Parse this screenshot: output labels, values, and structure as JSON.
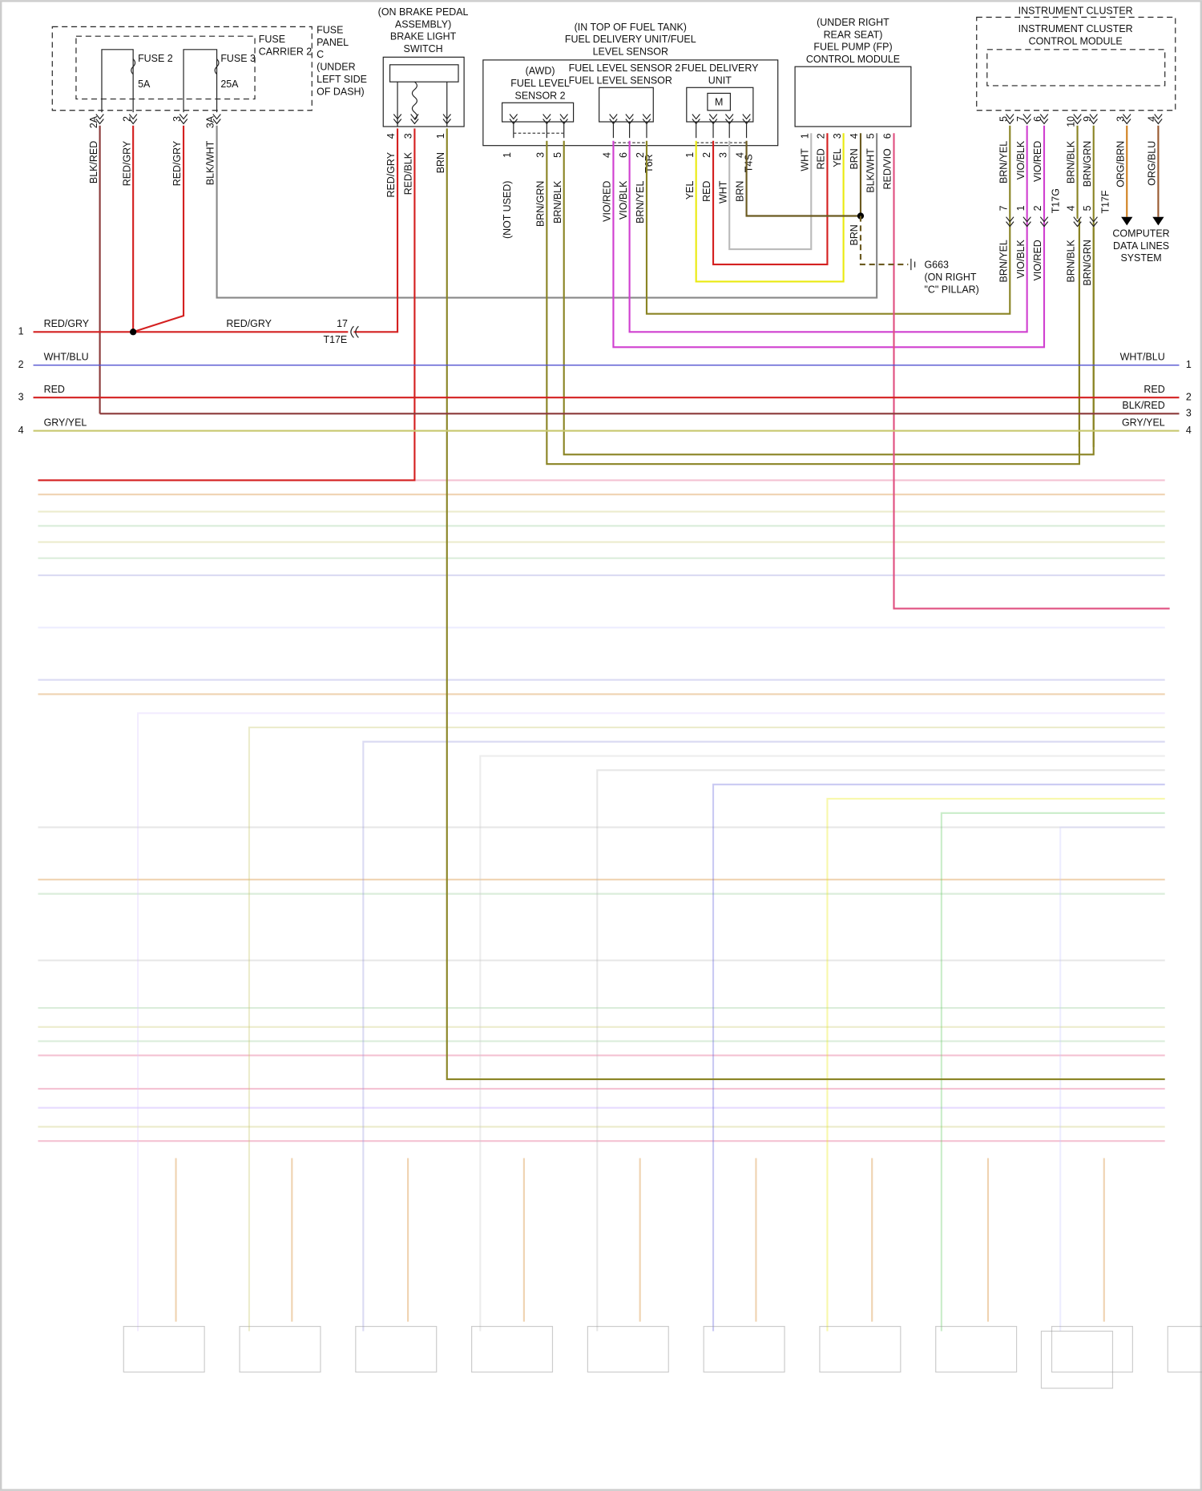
{
  "fuse_panel": {
    "label": [
      "FUSE",
      "PANEL",
      "C",
      "(UNDER",
      "LEFT SIDE",
      "OF DASH)"
    ],
    "carrier": [
      "FUSE",
      "CARRIER 2"
    ],
    "fuses": [
      {
        "name": "FUSE 2",
        "rating": "5A"
      },
      {
        "name": "FUSE 3",
        "rating": "25A"
      }
    ],
    "pins": [
      "2A",
      "2",
      "3",
      "3A"
    ],
    "wires": [
      "BLK/RED",
      "RED/GRY",
      "RED/GRY",
      "BLK/WHT"
    ]
  },
  "brake_switch": {
    "label": [
      "(ON BRAKE PEDAL",
      "ASSEMBLY)",
      "BRAKE LIGHT",
      "SWITCH"
    ],
    "pins": [
      "4",
      "3",
      "1"
    ],
    "wires": [
      "RED/GRY",
      "RED/BLK",
      "BRN"
    ]
  },
  "fuel_unit": {
    "label": [
      "(IN TOP OF FUEL TANK)",
      "FUEL DELIVERY UNIT/FUEL",
      "LEVEL SENSOR"
    ],
    "sensor2": [
      "(AWD)",
      "FUEL LEVEL",
      "SENSOR 2"
    ],
    "sensor": [
      "FUEL LEVEL SENSOR 2",
      "FUEL LEVEL SENSOR"
    ],
    "pump": [
      "FUEL DELIVERY",
      "UNIT"
    ],
    "motor": "M",
    "pins": [
      "1",
      "3",
      "5",
      "4",
      "6",
      "2",
      "1",
      "2",
      "3",
      "4"
    ],
    "connectors": [
      "T6R",
      "T4S"
    ],
    "wires": [
      "(NOT USED)",
      "BRN/GRN",
      "BRN/BLK",
      "VIO/RED",
      "VIO/BLK",
      "BRN/YEL",
      "YEL",
      "RED",
      "WHT",
      "BRN"
    ]
  },
  "fp_module": {
    "label": [
      "(UNDER RIGHT",
      "REAR SEAT)",
      "FUEL PUMP (FP)",
      "CONTROL MODULE"
    ],
    "pins": [
      "1",
      "2",
      "3",
      "4",
      "5",
      "6"
    ],
    "wires": [
      "WHT",
      "RED",
      "YEL",
      "BRN",
      "BLK/WHT",
      "RED/VIO"
    ]
  },
  "ground": {
    "wire": "BRN",
    "label": [
      "G663",
      "(ON RIGHT",
      "\"C\" PILLAR)"
    ]
  },
  "instrument_cluster": {
    "label": "INSTRUMENT CLUSTER",
    "module": [
      "INSTRUMENT CLUSTER",
      "CONTROL MODULE"
    ],
    "pins": [
      "5",
      "7",
      "6",
      "10",
      "9",
      "3",
      "4"
    ],
    "wires": [
      "BRN/YEL",
      "VIO/BLK",
      "VIO/RED",
      "BRN/BLK",
      "BRN/GRN",
      "ORG/BRN",
      "ORG/BLU"
    ],
    "lower_pins": [
      "7",
      "1",
      "2",
      "4",
      "5"
    ],
    "connectors": [
      "T17G",
      "T17F"
    ],
    "lower_wires": [
      "BRN/YEL",
      "VIO/BLK",
      "VIO/RED",
      "BRN/BLK",
      "BRN/GRN"
    ],
    "data_lines": [
      "COMPUTER",
      "DATA LINES",
      "SYSTEM"
    ]
  },
  "buses": {
    "left": [
      {
        "number": "1",
        "label": "RED/GRY"
      },
      {
        "number": "2",
        "label": "WHT/BLU"
      },
      {
        "number": "3",
        "label": "RED"
      },
      {
        "number": "4",
        "label": "GRY/YEL"
      }
    ],
    "splice": {
      "label": "RED/GRY",
      "pin": "17",
      "connector": "T17E"
    },
    "right": [
      {
        "number": "1",
        "label": "WHT/BLU"
      },
      {
        "number": "2",
        "label": "RED"
      },
      {
        "number": "3",
        "label": "BLK/RED"
      },
      {
        "number": "4",
        "label": "GRY/YEL"
      }
    ]
  }
}
